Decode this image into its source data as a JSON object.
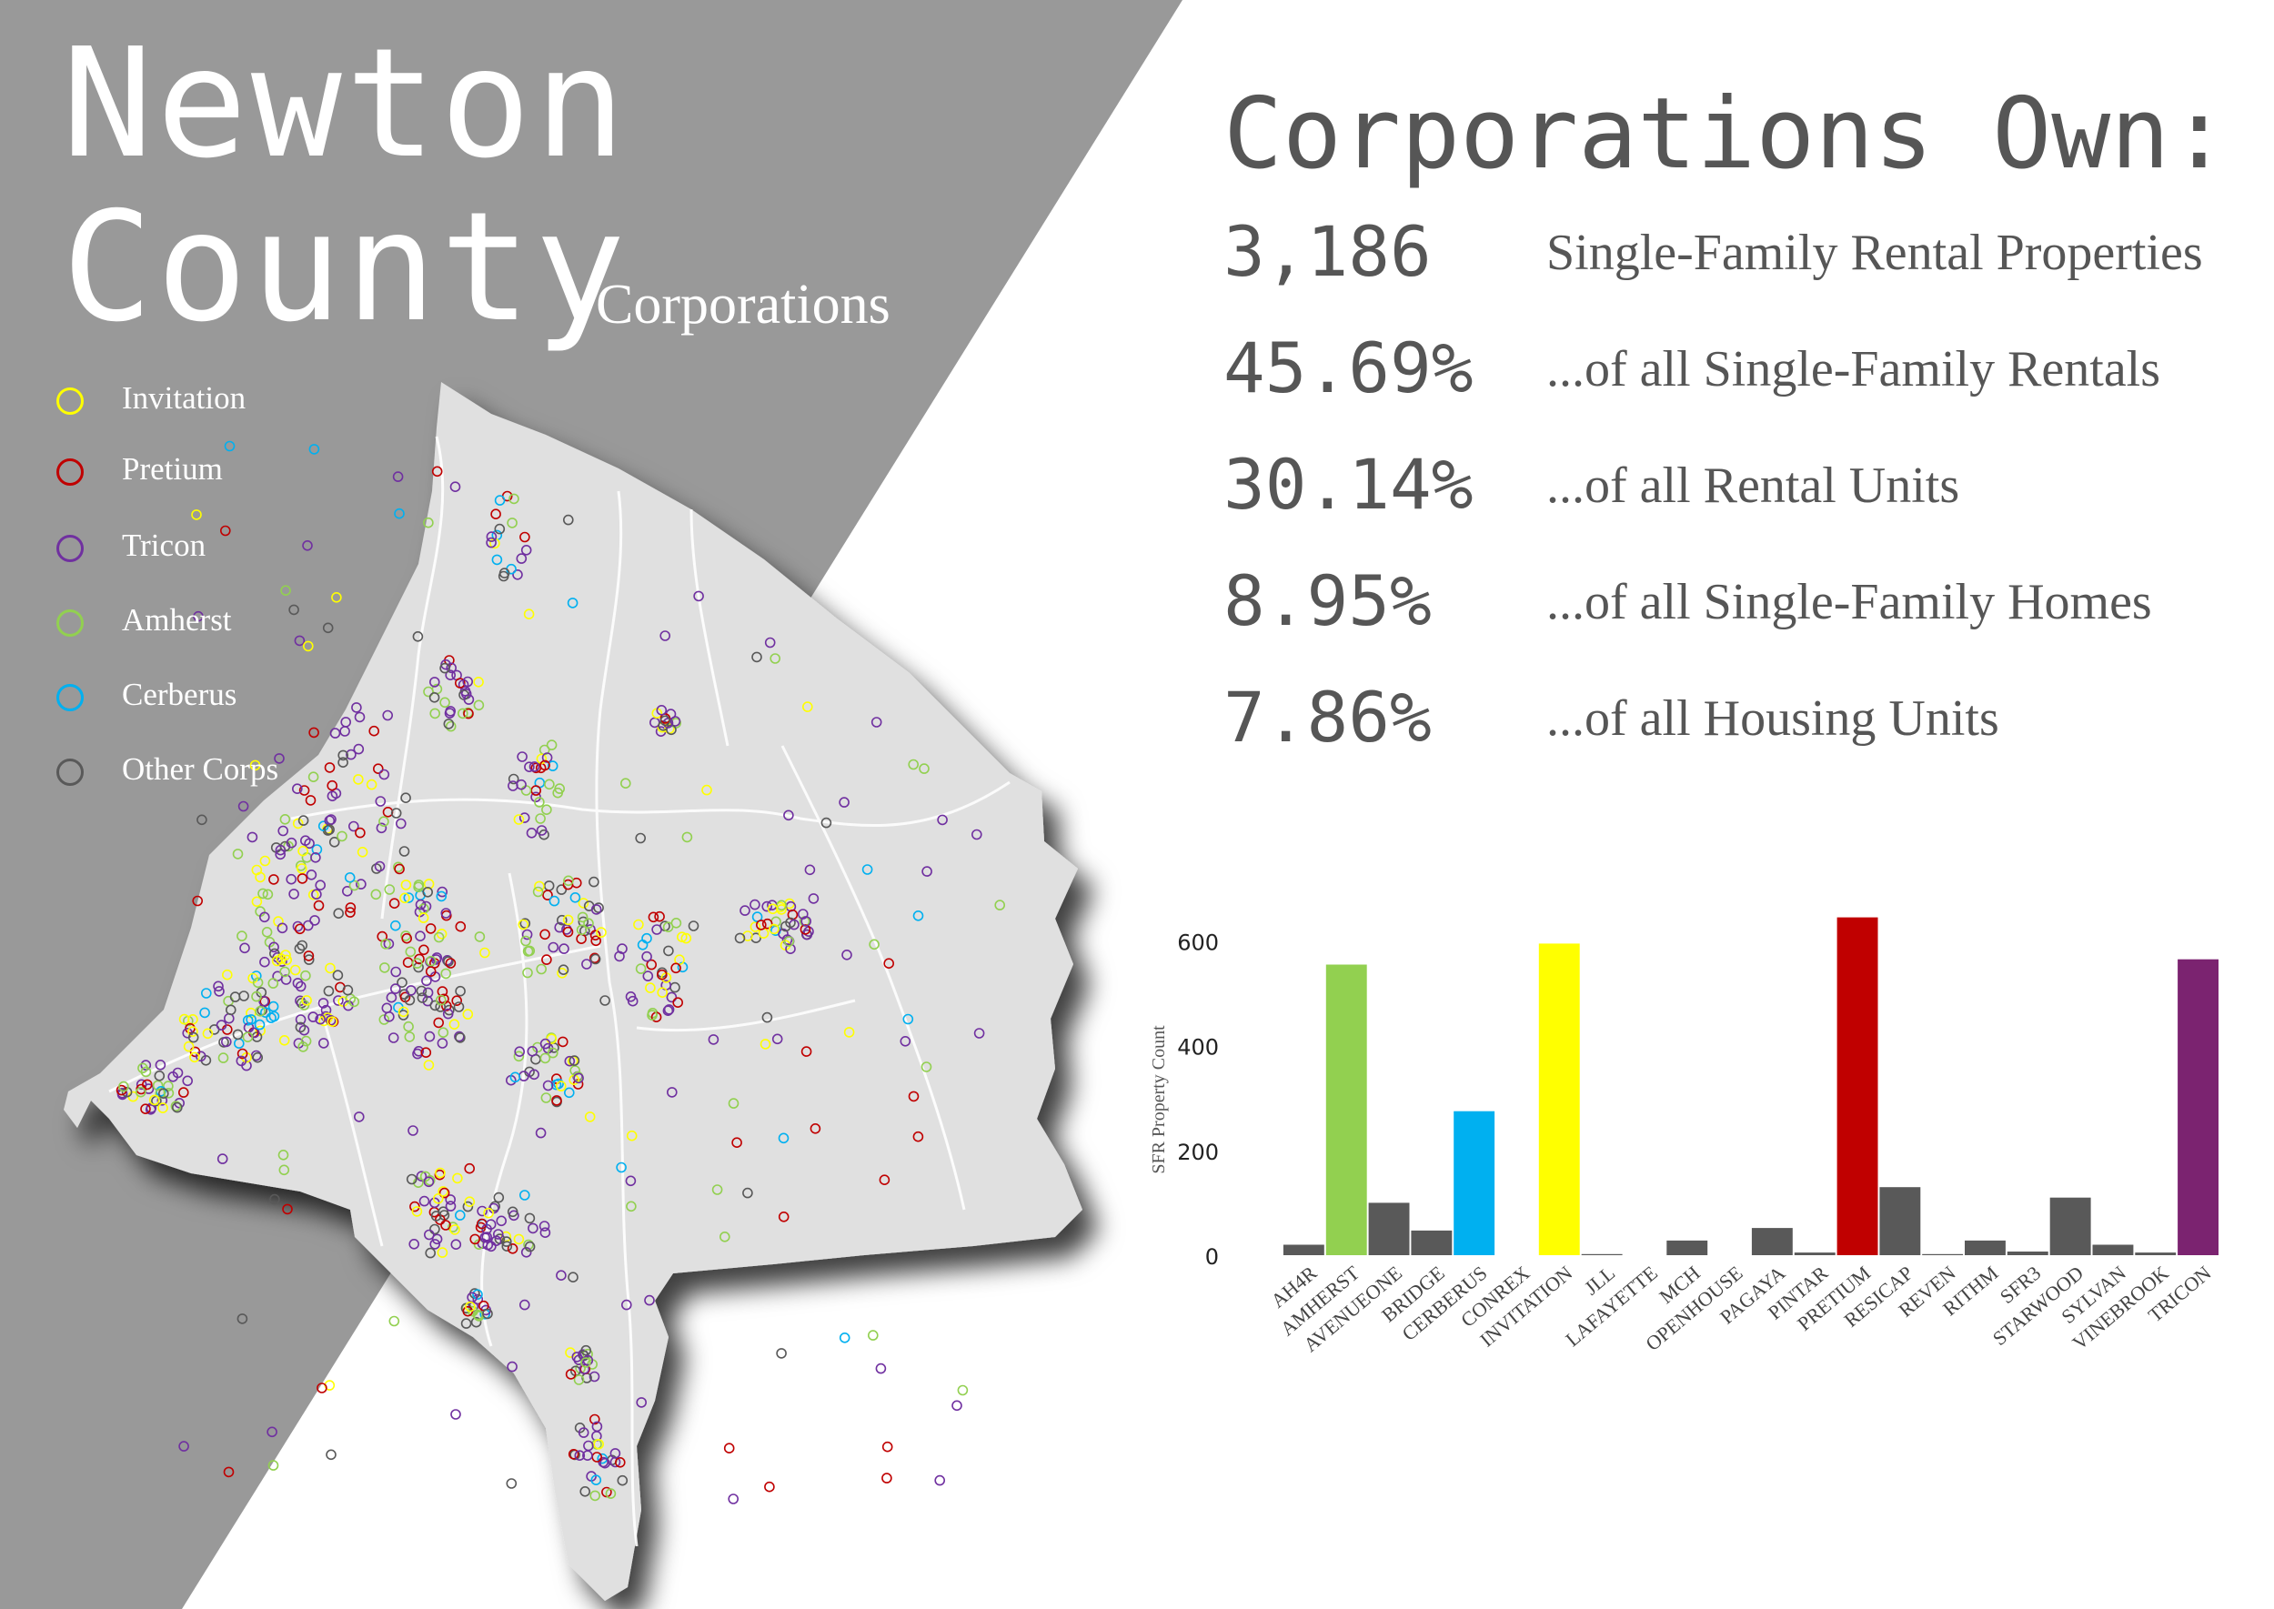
{
  "title": {
    "line1": "Newton",
    "line2": "County",
    "subtitle": "Corporations"
  },
  "legend": [
    {
      "label": "Invitation",
      "color": "#ffff00"
    },
    {
      "label": "Pretium",
      "color": "#c00000"
    },
    {
      "label": "Tricon",
      "color": "#7030a0"
    },
    {
      "label": "Amherst",
      "color": "#92d050"
    },
    {
      "label": "Cerberus",
      "color": "#00b0f0"
    },
    {
      "label": "Other Corps",
      "color": "#595959"
    }
  ],
  "stats": {
    "heading": "Corporations Own:",
    "items": [
      {
        "value": "3,186",
        "label": "Single-Family Rental Properties"
      },
      {
        "value": "45.69%",
        "label": "...of all Single-Family Rentals"
      },
      {
        "value": "30.14%",
        "label": "...of all Rental Units"
      },
      {
        "value": "8.95%",
        "label": "...of all Single-Family Homes"
      },
      {
        "value": "7.86%",
        "label": "...of all Housing Units"
      }
    ]
  },
  "colors": {
    "background_panel": "#999999",
    "map_fill": "#e0e0e0",
    "text_dark": "#565656",
    "other_bar": "#595959"
  },
  "chart_data": {
    "type": "bar",
    "ylabel": "SFR Property Count",
    "ylim": [
      0,
      660
    ],
    "yticks": [
      0,
      200,
      400,
      600
    ],
    "categories": [
      "AH4R",
      "AMHERST",
      "AVENUEONE",
      "BRIDGE",
      "CERBERUS",
      "CONREX",
      "INVITATION",
      "JLL",
      "LAFAYETTE",
      "MCH",
      "OPENHOUSE",
      "PAGAYA",
      "PINTAR",
      "PRETIUM",
      "RESICAP",
      "REVEN",
      "RITHM",
      "SFR3",
      "STARWOOD",
      "SYLVAN",
      "VINEBROOK",
      "TRICON"
    ],
    "values": [
      20,
      555,
      100,
      47,
      275,
      0,
      595,
      2,
      0,
      28,
      0,
      52,
      5,
      645,
      130,
      2,
      28,
      7,
      110,
      20,
      5,
      565
    ],
    "colors": [
      "#595959",
      "#92d050",
      "#595959",
      "#595959",
      "#00b0f0",
      "#595959",
      "#ffff00",
      "#595959",
      "#595959",
      "#595959",
      "#595959",
      "#595959",
      "#595959",
      "#c00000",
      "#595959",
      "#595959",
      "#595959",
      "#595959",
      "#595959",
      "#595959",
      "#595959",
      "#7b2370"
    ],
    "grid": false
  }
}
